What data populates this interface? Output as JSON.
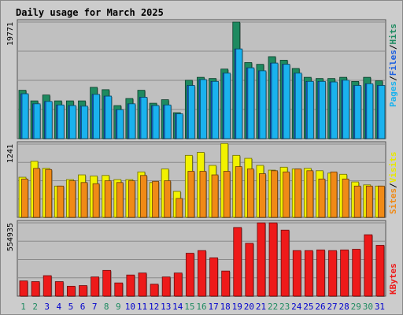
{
  "title": "Daily usage for March 2025",
  "colors": {
    "background": "#cccccc",
    "panel": "#c0c0c0",
    "hits": "#1e8a60",
    "files": "#1b5fe0",
    "pages": "#1ab2ee",
    "visits": "#f2f200",
    "sites": "#f08a16",
    "kbytes": "#ee1a1a",
    "title": "#0000cc",
    "weekend_day": "#1e8a60",
    "weekday": "#0000cc"
  },
  "legend": {
    "top": [
      {
        "label": "Pages",
        "color": "#1ab2ee"
      },
      {
        "label": "Files",
        "color": "#1b5fe0"
      },
      {
        "label": "Hits",
        "color": "#1e8a60"
      }
    ],
    "middle": [
      {
        "label": "Sites",
        "color": "#f08a16"
      },
      {
        "label": "Visits",
        "color": "#e8e800"
      }
    ],
    "bottom": [
      {
        "label": "KBytes",
        "color": "#ee1a1a"
      }
    ]
  },
  "chart_data": {
    "type": "bar",
    "title": "Daily usage for March 2025",
    "categories": [
      "1",
      "2",
      "3",
      "4",
      "5",
      "6",
      "7",
      "8",
      "9",
      "10",
      "11",
      "12",
      "13",
      "14",
      "15",
      "16",
      "17",
      "18",
      "19",
      "20",
      "21",
      "22",
      "23",
      "24",
      "25",
      "26",
      "27",
      "28",
      "29",
      "30",
      "31"
    ],
    "weekend_days": [
      "1",
      "2",
      "8",
      "9",
      "15",
      "16",
      "22",
      "23",
      "29",
      "30"
    ],
    "panels": [
      {
        "name": "hits-files-pages",
        "max_label": "19771",
        "ymax": 19771,
        "series": [
          {
            "name": "Hits",
            "values": [
              8200,
              6400,
              7400,
              6400,
              6400,
              6400,
              8700,
              8300,
              5600,
              6800,
              8200,
              6000,
              6600,
              4400,
              9900,
              10400,
              10200,
              11800,
              19771,
              12900,
              12600,
              13900,
              13300,
              11900,
              10400,
              10200,
              10200,
              10400,
              9700,
              10400,
              9800
            ]
          },
          {
            "name": "Files",
            "values": [
              7600,
              5900,
              6300,
              5700,
              5600,
              5500,
              7500,
              7200,
              4900,
              5900,
              7000,
              5600,
              5700,
              4200,
              9000,
              10000,
              9700,
              11100,
              15200,
              12000,
              11500,
              12800,
              12600,
              11100,
              9700,
              9700,
              9600,
              9900,
              9000,
              9300,
              9000
            ]
          },
          {
            "name": "Pages",
            "values": [
              7600,
              5900,
              6300,
              5700,
              5600,
              5500,
              7500,
              7200,
              4900,
              5900,
              7000,
              5600,
              5700,
              4200,
              9000,
              10000,
              9700,
              11100,
              15200,
              12000,
              11500,
              12800,
              12600,
              11100,
              9700,
              9700,
              9600,
              9900,
              9000,
              9300,
              9000
            ]
          }
        ]
      },
      {
        "name": "visits-sites",
        "max_label": "1241",
        "ymax": 1241,
        "series": [
          {
            "name": "Visits",
            "values": [
              680,
              950,
              830,
              530,
              640,
              720,
              700,
              710,
              640,
              640,
              770,
              590,
              820,
              440,
              1050,
              1100,
              880,
              1250,
              1050,
              1000,
              880,
              800,
              850,
              820,
              830,
              790,
              750,
              730,
              600,
              550,
              530
            ]
          },
          {
            "name": "Sites",
            "values": [
              650,
              830,
              810,
              530,
              620,
              590,
              570,
              620,
              590,
              620,
              710,
              610,
              620,
              320,
              780,
              780,
              720,
              780,
              860,
              820,
              740,
              790,
              770,
              820,
              790,
              650,
              770,
              650,
              530,
              530,
              530
            ]
          }
        ]
      },
      {
        "name": "kbytes",
        "max_label": "554935",
        "ymax": 554935,
        "series": [
          {
            "name": "KBytes",
            "values": [
              115000,
              110000,
              155000,
              110000,
              75000,
              80000,
              145000,
              195000,
              100000,
              160000,
              175000,
              90000,
              145000,
              175000,
              325000,
              345000,
              290000,
              190000,
              520000,
              400000,
              565000,
              560000,
              500000,
              345000,
              345000,
              350000,
              345000,
              350000,
              355000,
              465000,
              385000
            ]
          }
        ]
      }
    ]
  }
}
